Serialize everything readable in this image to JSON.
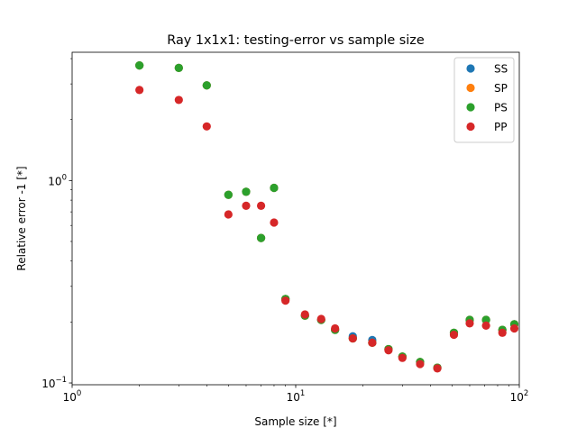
{
  "chart_data": {
    "type": "scatter",
    "title": "Ray 1x1x1: testing-error vs sample size",
    "xlabel": "Sample size [*]",
    "ylabel": "Relative error -1 [*]",
    "xscale": "log",
    "yscale": "log",
    "xlim": [
      1,
      100
    ],
    "ylim": [
      0.098,
      4.3
    ],
    "grid": false,
    "legend_position": "top-right",
    "x_ticks": [
      {
        "value": 1,
        "base": "10",
        "exp": "0"
      },
      {
        "value": 10,
        "base": "10",
        "exp": "1"
      },
      {
        "value": 100,
        "base": "10",
        "exp": "2"
      }
    ],
    "y_ticks": [
      {
        "value": 0.1,
        "base": "10",
        "exp": "−1"
      },
      {
        "value": 1,
        "base": "10",
        "exp": "0"
      }
    ],
    "x": [
      2,
      3,
      4,
      5,
      6,
      7,
      8,
      9,
      11,
      13,
      15,
      18,
      22,
      26,
      30,
      36,
      43,
      51,
      60,
      71,
      84,
      95
    ],
    "series": [
      {
        "name": "SS",
        "color": "#1f77b4",
        "values": [
          3.7,
          3.6,
          2.95,
          0.85,
          0.88,
          0.52,
          0.92,
          0.26,
          0.215,
          0.205,
          0.183,
          0.17,
          0.163,
          0.147,
          0.135,
          0.127,
          0.119,
          0.177,
          0.205,
          0.205,
          0.183,
          0.195
        ]
      },
      {
        "name": "SP",
        "color": "#ff7f0e",
        "values": [
          3.7,
          3.6,
          2.95,
          0.85,
          0.88,
          0.52,
          0.92,
          0.26,
          0.215,
          0.205,
          0.183,
          0.166,
          0.158,
          0.147,
          0.135,
          0.127,
          0.119,
          0.177,
          0.205,
          0.205,
          0.183,
          0.195
        ]
      },
      {
        "name": "PS",
        "color": "#2ca02c",
        "values": [
          3.7,
          3.6,
          2.95,
          0.85,
          0.88,
          0.52,
          0.92,
          0.26,
          0.215,
          0.205,
          0.183,
          0.166,
          0.158,
          0.147,
          0.135,
          0.127,
          0.119,
          0.177,
          0.205,
          0.205,
          0.183,
          0.195
        ]
      },
      {
        "name": "PP",
        "color": "#d62728",
        "values": [
          2.8,
          2.5,
          1.85,
          0.68,
          0.75,
          0.75,
          0.62,
          0.255,
          0.218,
          0.207,
          0.186,
          0.166,
          0.158,
          0.145,
          0.133,
          0.124,
          0.118,
          0.173,
          0.197,
          0.192,
          0.177,
          0.186
        ]
      }
    ]
  }
}
